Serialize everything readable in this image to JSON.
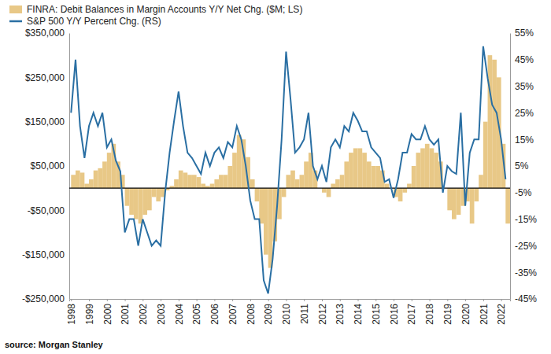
{
  "chart_data": {
    "type": "bar",
    "legend": "top-left",
    "grid": false,
    "source": "source: Morgan Stanley",
    "x": [
      1998.0,
      1998.25,
      1998.5,
      1998.75,
      1999.0,
      1999.25,
      1999.5,
      1999.75,
      2000.0,
      2000.25,
      2000.5,
      2000.75,
      2001.0,
      2001.25,
      2001.5,
      2001.75,
      2002.0,
      2002.25,
      2002.5,
      2002.75,
      2003.0,
      2003.25,
      2003.5,
      2003.75,
      2004.0,
      2004.25,
      2004.5,
      2004.75,
      2005.0,
      2005.25,
      2005.5,
      2005.75,
      2006.0,
      2006.25,
      2006.5,
      2006.75,
      2007.0,
      2007.25,
      2007.5,
      2007.75,
      2008.0,
      2008.25,
      2008.5,
      2008.75,
      2009.0,
      2009.25,
      2009.5,
      2009.75,
      2010.0,
      2010.25,
      2010.5,
      2010.75,
      2011.0,
      2011.25,
      2011.5,
      2011.75,
      2012.0,
      2012.25,
      2012.5,
      2012.75,
      2013.0,
      2013.25,
      2013.5,
      2013.75,
      2014.0,
      2014.25,
      2014.5,
      2014.75,
      2015.0,
      2015.25,
      2015.5,
      2015.75,
      2016.0,
      2016.25,
      2016.5,
      2016.75,
      2017.0,
      2017.25,
      2017.5,
      2017.75,
      2018.0,
      2018.25,
      2018.5,
      2018.75,
      2019.0,
      2019.25,
      2019.5,
      2019.75,
      2020.0,
      2020.25,
      2020.5,
      2020.75,
      2021.0,
      2021.25,
      2021.5,
      2021.75,
      2022.0,
      2022.25
    ],
    "xlim": [
      1997.9,
      2022.5
    ],
    "xticks": [
      1998,
      1999,
      2000,
      2001,
      2002,
      2003,
      2004,
      2005,
      2006,
      2007,
      2008,
      2009,
      2010,
      2011,
      2012,
      2013,
      2014,
      2015,
      2016,
      2017,
      2018,
      2019,
      2020,
      2021,
      2022
    ],
    "ylim": [
      -250000,
      350000
    ],
    "yticks": [
      {
        "value": -250000,
        "label": "-$250,000"
      },
      {
        "value": -150000,
        "label": "-$150,000"
      },
      {
        "value": -50000,
        "label": "-$50,000"
      },
      {
        "value": 50000,
        "label": "$50,000"
      },
      {
        "value": 150000,
        "label": "$150,000"
      },
      {
        "value": 250000,
        "label": "$250,000"
      },
      {
        "value": 350000,
        "label": "$350,000"
      }
    ],
    "y2lim": [
      -45,
      55
    ],
    "y2ticks": [
      {
        "value": -45,
        "label": "-45%"
      },
      {
        "value": -35,
        "label": "-35%"
      },
      {
        "value": -25,
        "label": "-25%"
      },
      {
        "value": -15,
        "label": "-15%"
      },
      {
        "value": -5,
        "label": "-5%"
      },
      {
        "value": 5,
        "label": "5%"
      },
      {
        "value": 15,
        "label": "15%"
      },
      {
        "value": 25,
        "label": "25%"
      },
      {
        "value": 35,
        "label": "35%"
      },
      {
        "value": 45,
        "label": "45%"
      },
      {
        "value": 55,
        "label": "55%"
      }
    ],
    "series": [
      {
        "name": "FINRA: Debit Balances in Margin Accounts Y/Y Net Chg. ($M; LS)",
        "type": "bar",
        "color": "#e8c887",
        "values": [
          30000,
          40000,
          35000,
          10000,
          20000,
          40000,
          45000,
          60000,
          80000,
          100000,
          60000,
          30000,
          -40000,
          -60000,
          -70000,
          -80000,
          -60000,
          -50000,
          -20000,
          -30000,
          -20000,
          -5000,
          5000,
          20000,
          40000,
          35000,
          30000,
          30000,
          25000,
          10000,
          5000,
          10000,
          20000,
          30000,
          30000,
          50000,
          80000,
          120000,
          110000,
          70000,
          20000,
          -30000,
          -80000,
          -150000,
          -180000,
          -120000,
          -70000,
          -20000,
          30000,
          40000,
          20000,
          30000,
          60000,
          80000,
          40000,
          0,
          -10000,
          -20000,
          10000,
          20000,
          30000,
          60000,
          80000,
          90000,
          90000,
          80000,
          60000,
          50000,
          50000,
          40000,
          10000,
          0,
          -20000,
          -30000,
          -10000,
          10000,
          50000,
          80000,
          90000,
          100000,
          90000,
          80000,
          60000,
          0,
          -50000,
          -70000,
          -60000,
          -40000,
          -30000,
          -80000,
          -30000,
          30000,
          150000,
          300000,
          290000,
          250000,
          100000,
          -80000
        ]
      },
      {
        "name": "S&P 500 Y/Y Percent Chg. (RS)",
        "type": "line",
        "axis": "y2",
        "color": "#2a6fa3",
        "values": [
          25,
          45,
          20,
          8,
          20,
          25,
          20,
          25,
          12,
          15,
          7,
          3,
          -20,
          -15,
          -15,
          -25,
          -15,
          -20,
          -25,
          -23,
          -25,
          -5,
          10,
          22,
          33,
          20,
          10,
          8,
          5,
          2,
          10,
          5,
          10,
          12,
          8,
          14,
          12,
          20,
          15,
          5,
          -8,
          -15,
          -15,
          -38,
          -43,
          -30,
          -10,
          15,
          48,
          30,
          10,
          12,
          15,
          25,
          5,
          0,
          5,
          -1,
          12,
          15,
          12,
          20,
          18,
          25,
          22,
          18,
          18,
          12,
          10,
          8,
          -1,
          0,
          -7,
          0,
          10,
          10,
          17,
          15,
          15,
          20,
          15,
          13,
          15,
          -5,
          5,
          3,
          2,
          25,
          -10,
          10,
          15,
          15,
          50,
          38,
          28,
          25,
          15,
          0
        ]
      }
    ]
  }
}
